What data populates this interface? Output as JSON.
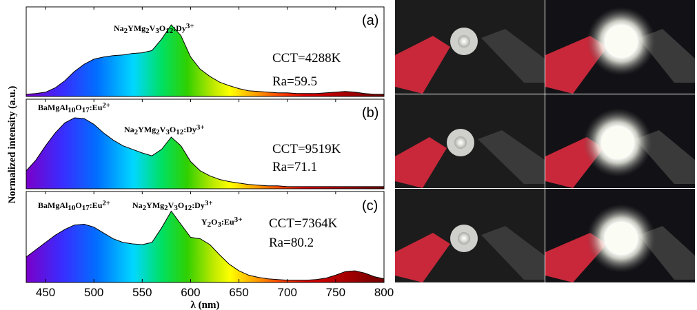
{
  "chart_data": [
    {
      "type": "area",
      "panel_label": "(a)",
      "cct": "CCT=4288K",
      "ra": "Ra=59.5",
      "phosphors": [
        "Na2YMg2V3O12:Dy3+"
      ],
      "ylabel": "Normalized intensity (a.u.)",
      "xlim": [
        430,
        800
      ],
      "ylim": [
        0,
        1.25
      ],
      "x": [
        430,
        440,
        450,
        460,
        470,
        480,
        490,
        500,
        510,
        520,
        530,
        540,
        550,
        560,
        570,
        580,
        590,
        600,
        610,
        620,
        630,
        640,
        650,
        660,
        670,
        680,
        690,
        700,
        710,
        720,
        730,
        740,
        750,
        760,
        770,
        780,
        790,
        800
      ],
      "values": [
        0.03,
        0.04,
        0.06,
        0.12,
        0.22,
        0.35,
        0.45,
        0.52,
        0.55,
        0.57,
        0.58,
        0.6,
        0.61,
        0.64,
        0.8,
        1.0,
        0.85,
        0.55,
        0.38,
        0.28,
        0.2,
        0.15,
        0.11,
        0.08,
        0.07,
        0.06,
        0.05,
        0.05,
        0.04,
        0.04,
        0.04,
        0.05,
        0.06,
        0.07,
        0.06,
        0.04,
        0.03,
        0.03
      ]
    },
    {
      "type": "area",
      "panel_label": "(b)",
      "cct": "CCT=9519K",
      "ra": "Ra=71.1",
      "phosphors": [
        "BaMgAl10O17:Eu2+",
        "Na2YMg2V3O12:Dy3+"
      ],
      "xlim": [
        430,
        800
      ],
      "ylim": [
        0,
        1.25
      ],
      "x": [
        430,
        440,
        450,
        460,
        470,
        480,
        490,
        500,
        510,
        520,
        530,
        540,
        550,
        560,
        570,
        580,
        590,
        600,
        610,
        620,
        630,
        640,
        650,
        660,
        670,
        680,
        690,
        700,
        710,
        720,
        730,
        740,
        750,
        760,
        770,
        780,
        790,
        800
      ],
      "values": [
        0.25,
        0.4,
        0.6,
        0.78,
        0.92,
        0.99,
        0.98,
        0.9,
        0.78,
        0.68,
        0.6,
        0.55,
        0.5,
        0.46,
        0.55,
        0.72,
        0.6,
        0.38,
        0.25,
        0.18,
        0.13,
        0.1,
        0.08,
        0.06,
        0.05,
        0.04,
        0.04,
        0.03,
        0.03,
        0.03,
        0.03,
        0.03,
        0.03,
        0.03,
        0.03,
        0.03,
        0.03,
        0.03
      ]
    },
    {
      "type": "area",
      "panel_label": "(c)",
      "cct": "CCT=7364K",
      "ra": "Ra=80.2",
      "phosphors": [
        "BaMgAl10O17:Eu2+",
        "Na2YMg2V3O12:Dy3+",
        "Y2O3:Eu3+"
      ],
      "xlabel": "λ (nm)",
      "xlim": [
        430,
        800
      ],
      "ylim": [
        0,
        1.25
      ],
      "xticks": [
        450,
        500,
        550,
        600,
        650,
        700,
        750,
        800
      ],
      "x": [
        430,
        440,
        450,
        460,
        470,
        480,
        490,
        500,
        510,
        520,
        530,
        540,
        550,
        560,
        570,
        580,
        590,
        600,
        610,
        620,
        630,
        640,
        650,
        660,
        670,
        680,
        690,
        700,
        710,
        720,
        730,
        740,
        750,
        760,
        770,
        780,
        790,
        800
      ],
      "values": [
        0.35,
        0.45,
        0.55,
        0.65,
        0.73,
        0.79,
        0.8,
        0.76,
        0.68,
        0.6,
        0.55,
        0.53,
        0.52,
        0.55,
        0.75,
        0.98,
        0.8,
        0.62,
        0.6,
        0.52,
        0.38,
        0.25,
        0.16,
        0.1,
        0.07,
        0.05,
        0.04,
        0.03,
        0.03,
        0.03,
        0.04,
        0.06,
        0.1,
        0.15,
        0.16,
        0.13,
        0.08,
        0.05
      ]
    }
  ]
}
